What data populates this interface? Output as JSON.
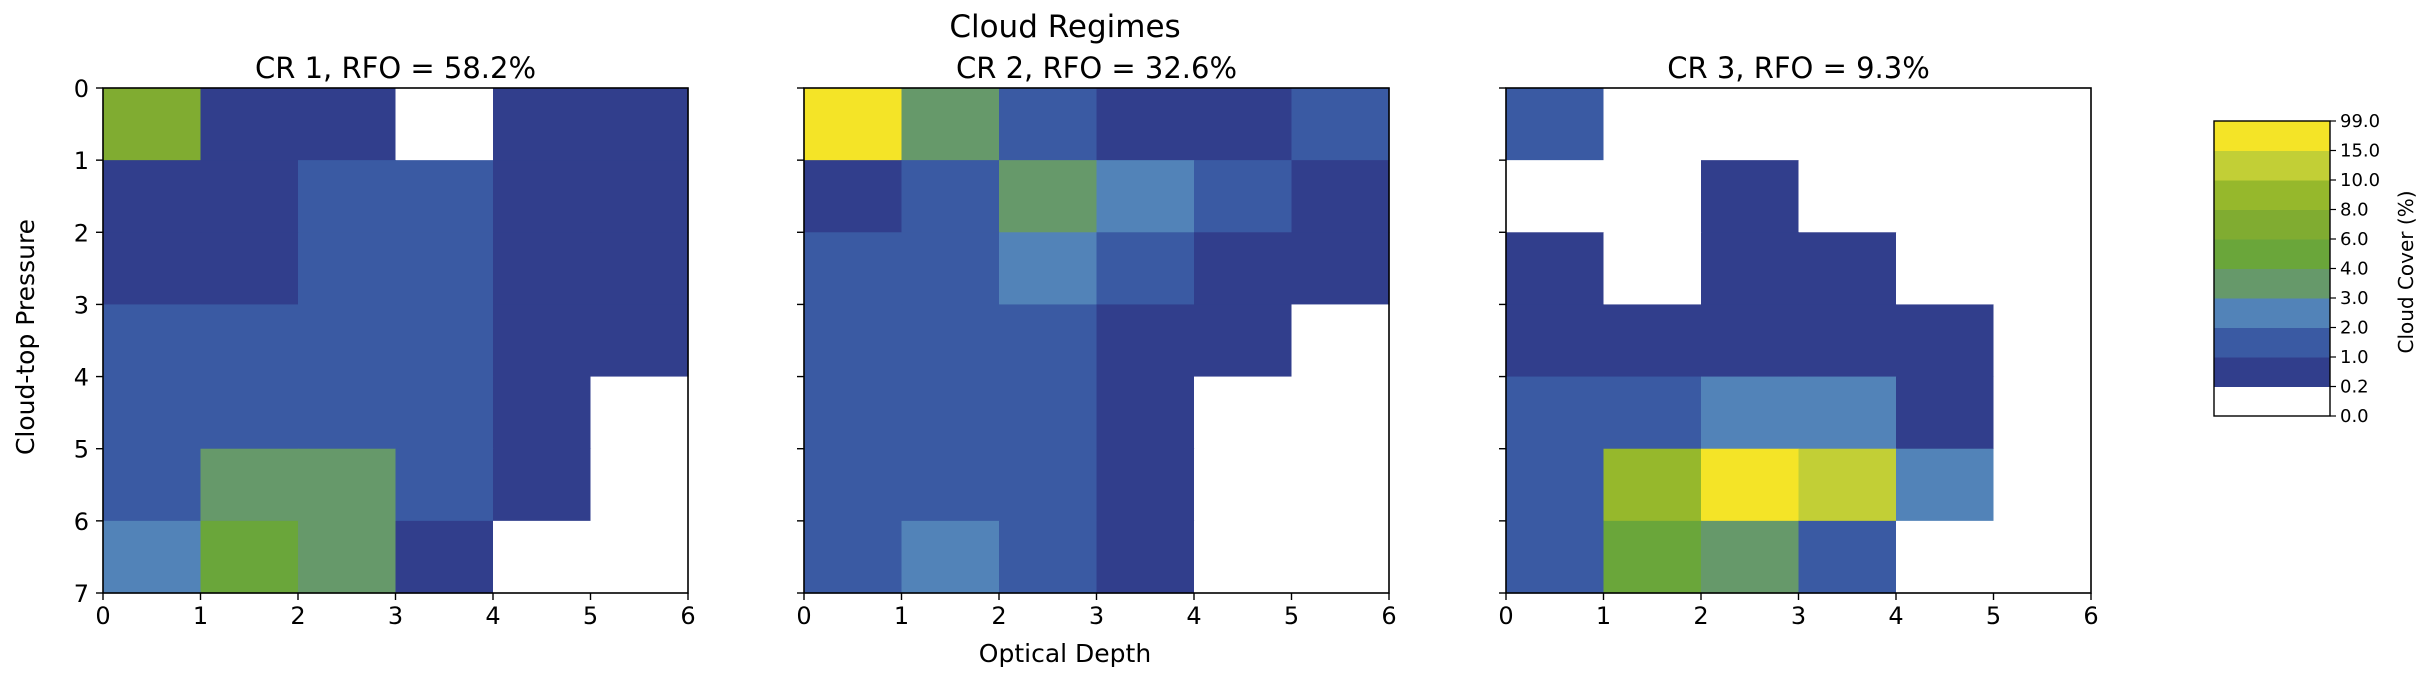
{
  "figure": {
    "title": "Cloud Regimes",
    "xlabel": "Optical Depth",
    "ylabel": "Cloud-top Pressure"
  },
  "colorbar": {
    "label": "Cloud Cover (%)",
    "boundaries": [
      0.0,
      0.2,
      1.0,
      2.0,
      3.0,
      4.0,
      6.0,
      8.0,
      10.0,
      15.0,
      99.0
    ],
    "tick_labels": [
      "0.0",
      "0.2",
      "1.0",
      "2.0",
      "3.0",
      "4.0",
      "6.0",
      "8.0",
      "10.0",
      "15.0",
      "99.0"
    ],
    "colors": [
      "#ffffff",
      "#313e8c",
      "#3a5aa3",
      "#5283b8",
      "#66996a",
      "#6aa63a",
      "#80ac31",
      "#96b82c",
      "#c2cf36",
      "#f4e427"
    ]
  },
  "chart_data": [
    {
      "type": "heatmap",
      "title": "CR 1, RFO = 58.2%",
      "x_ticks": [
        "0",
        "1",
        "2",
        "3",
        "4",
        "5",
        "6"
      ],
      "y_ticks": [
        "0",
        "1",
        "2",
        "3",
        "4",
        "5",
        "6",
        "7"
      ],
      "xlim": [
        0,
        6
      ],
      "ylim": [
        7,
        0
      ],
      "values": [
        [
          7.0,
          0.5,
          0.5,
          0.0,
          0.5,
          0.5
        ],
        [
          0.5,
          0.5,
          1.5,
          1.5,
          0.5,
          0.5
        ],
        [
          0.5,
          0.5,
          1.5,
          1.5,
          0.5,
          0.5
        ],
        [
          1.5,
          1.5,
          1.5,
          1.5,
          0.5,
          0.5
        ],
        [
          1.5,
          1.5,
          1.5,
          1.5,
          0.5,
          0.0
        ],
        [
          1.5,
          3.5,
          3.5,
          1.5,
          0.5,
          0.0
        ],
        [
          2.5,
          5.0,
          3.5,
          0.5,
          0.0,
          0.0
        ]
      ]
    },
    {
      "type": "heatmap",
      "title": "CR 2, RFO = 32.6%",
      "x_ticks": [
        "0",
        "1",
        "2",
        "3",
        "4",
        "5",
        "6"
      ],
      "y_ticks": [],
      "xlim": [
        0,
        6
      ],
      "ylim": [
        7,
        0
      ],
      "values": [
        [
          20.0,
          3.5,
          1.5,
          0.5,
          0.5,
          1.5
        ],
        [
          0.5,
          1.5,
          3.5,
          2.5,
          1.5,
          0.5
        ],
        [
          1.5,
          1.5,
          2.5,
          1.5,
          0.5,
          0.5
        ],
        [
          1.5,
          1.5,
          1.5,
          0.5,
          0.5,
          0.0
        ],
        [
          1.5,
          1.5,
          1.5,
          0.5,
          0.0,
          0.0
        ],
        [
          1.5,
          1.5,
          1.5,
          0.5,
          0.0,
          0.0
        ],
        [
          1.5,
          2.5,
          1.5,
          0.5,
          0.0,
          0.0
        ]
      ]
    },
    {
      "type": "heatmap",
      "title": "CR 3, RFO = 9.3%",
      "x_ticks": [
        "0",
        "1",
        "2",
        "3",
        "4",
        "5",
        "6"
      ],
      "y_ticks": [],
      "xlim": [
        0,
        6
      ],
      "ylim": [
        7,
        0
      ],
      "values": [
        [
          1.5,
          0.0,
          0.0,
          0.0,
          0.0,
          0.0
        ],
        [
          0.0,
          0.0,
          0.5,
          0.0,
          0.0,
          0.0
        ],
        [
          0.5,
          0.0,
          0.5,
          0.5,
          0.0,
          0.0
        ],
        [
          0.5,
          0.5,
          0.5,
          0.5,
          0.5,
          0.0
        ],
        [
          1.5,
          1.5,
          2.5,
          2.5,
          0.5,
          0.0
        ],
        [
          1.5,
          9.0,
          20.0,
          12.0,
          2.5,
          0.0
        ],
        [
          1.5,
          5.0,
          3.5,
          1.5,
          0.0,
          0.0
        ]
      ]
    }
  ]
}
